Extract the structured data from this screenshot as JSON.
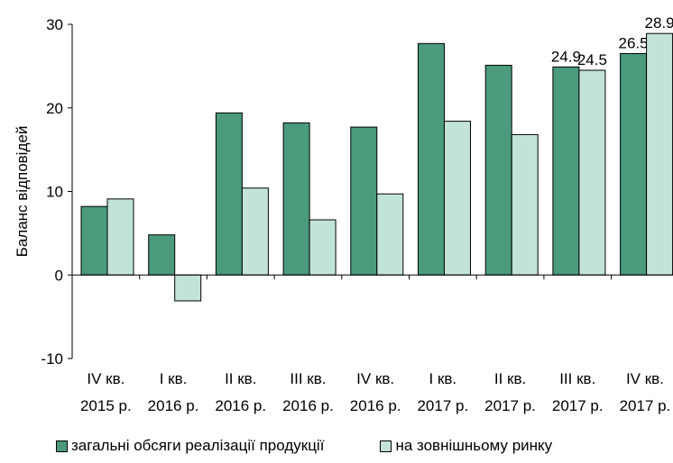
{
  "chart_data": {
    "type": "bar",
    "categories": [
      [
        "IV кв.",
        "2015 р."
      ],
      [
        "I кв.",
        "2016 р."
      ],
      [
        "II кв.",
        "2016 р."
      ],
      [
        "III кв.",
        "2016 р."
      ],
      [
        "IV кв.",
        "2016 р."
      ],
      [
        "I кв.",
        "2017 р."
      ],
      [
        "II кв.",
        "2017 р."
      ],
      [
        "III кв.",
        "2017 р."
      ],
      [
        "IV кв.",
        "2017 р."
      ]
    ],
    "series": [
      {
        "name": "загальні обсяги реалізації продукції",
        "color": "#4a9a7c",
        "values": [
          8.2,
          4.8,
          19.4,
          18.2,
          17.7,
          27.7,
          25.1,
          24.9,
          26.5
        ],
        "labels": [
          "",
          "",
          "",
          "",
          "",
          "",
          "",
          "24.9",
          "26.5"
        ]
      },
      {
        "name": "на зовнішньому ринку",
        "color": "#c2e4d6",
        "values": [
          9.1,
          -3.1,
          10.4,
          6.6,
          9.7,
          18.4,
          16.8,
          24.5,
          28.9
        ],
        "labels": [
          "",
          "",
          "",
          "",
          "",
          "",
          "",
          "24.5",
          "28.9"
        ]
      }
    ],
    "ylabel": "Баланс відповідей",
    "ylim": [
      -10,
      30
    ],
    "yticks": [
      -10,
      0,
      10,
      20,
      30
    ],
    "grid": false,
    "legend_position": "bottom"
  },
  "legend": {
    "series1": "загальні обсяги реалізації продукції",
    "series2": "на зовнішньому ринку"
  }
}
